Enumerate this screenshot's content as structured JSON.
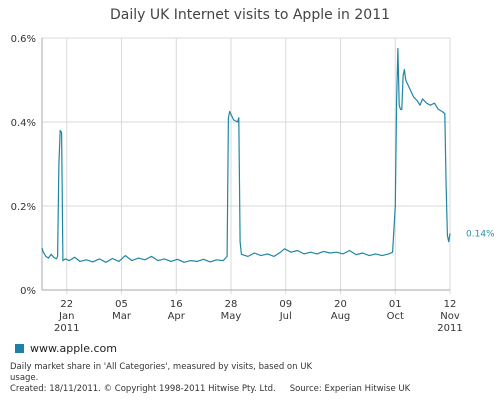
{
  "colors": {
    "series": "#1f86a3",
    "grid": "#d9d9d9",
    "axis": "#aaaaaa",
    "swatch": "#1f7fa8"
  },
  "footnote": {
    "line1": "Daily market share in 'All Categories', measured by visits, based on UK",
    "line2": "usage.",
    "created": "Created: 18/11/2011. © Copyright 1998-2011 Hitwise Pty. Ltd.",
    "source": "Source: Experian Hitwise UK"
  },
  "chart_data": {
    "type": "line",
    "title": "Daily UK Internet visits to Apple in 2011",
    "ylabel": "",
    "xlabel": "",
    "x_range": [
      "2011-01-03",
      "2011-11-12"
    ],
    "ylim": [
      0,
      0.6
    ],
    "y_ticks": [
      {
        "value": 0,
        "label": "0%"
      },
      {
        "value": 0.2,
        "label": "0.2%"
      },
      {
        "value": 0.4,
        "label": "0.4%"
      },
      {
        "value": 0.6,
        "label": "0.6%"
      }
    ],
    "x_ticks": [
      {
        "date": "2011-01-22",
        "line1": "22",
        "line2": "Jan",
        "line3": "2011"
      },
      {
        "date": "2011-03-05",
        "line1": "05",
        "line2": "Mar",
        "line3": ""
      },
      {
        "date": "2011-04-16",
        "line1": "16",
        "line2": "Apr",
        "line3": ""
      },
      {
        "date": "2011-05-28",
        "line1": "28",
        "line2": "May",
        "line3": ""
      },
      {
        "date": "2011-07-09",
        "line1": "09",
        "line2": "Jul",
        "line3": ""
      },
      {
        "date": "2011-08-20",
        "line1": "20",
        "line2": "Aug",
        "line3": ""
      },
      {
        "date": "2011-10-01",
        "line1": "01",
        "line2": "Oct",
        "line3": ""
      },
      {
        "date": "2011-11-12",
        "line1": "12",
        "line2": "Nov",
        "line3": "2011"
      }
    ],
    "grid": true,
    "legend_position": "bottom-left",
    "end_label": "0.14%",
    "series": [
      {
        "name": "www.apple.com",
        "points": [
          [
            "2011-01-03",
            0.1
          ],
          [
            "2011-01-04",
            0.09
          ],
          [
            "2011-01-06",
            0.08
          ],
          [
            "2011-01-08",
            0.076
          ],
          [
            "2011-01-10",
            0.085
          ],
          [
            "2011-01-12",
            0.078
          ],
          [
            "2011-01-14",
            0.074
          ],
          [
            "2011-01-15",
            0.08
          ],
          [
            "2011-01-16",
            0.3
          ],
          [
            "2011-01-17",
            0.38
          ],
          [
            "2011-01-18",
            0.375
          ],
          [
            "2011-01-19",
            0.07
          ],
          [
            "2011-01-21",
            0.074
          ],
          [
            "2011-01-24",
            0.07
          ],
          [
            "2011-01-28",
            0.078
          ],
          [
            "2011-02-01",
            0.068
          ],
          [
            "2011-02-06",
            0.072
          ],
          [
            "2011-02-11",
            0.067
          ],
          [
            "2011-02-16",
            0.074
          ],
          [
            "2011-02-21",
            0.066
          ],
          [
            "2011-02-26",
            0.075
          ],
          [
            "2011-03-03",
            0.068
          ],
          [
            "2011-03-08",
            0.082
          ],
          [
            "2011-03-13",
            0.07
          ],
          [
            "2011-03-18",
            0.076
          ],
          [
            "2011-03-23",
            0.072
          ],
          [
            "2011-03-28",
            0.08
          ],
          [
            "2011-04-02",
            0.07
          ],
          [
            "2011-04-07",
            0.074
          ],
          [
            "2011-04-12",
            0.068
          ],
          [
            "2011-04-17",
            0.073
          ],
          [
            "2011-04-22",
            0.066
          ],
          [
            "2011-04-27",
            0.07
          ],
          [
            "2011-05-02",
            0.068
          ],
          [
            "2011-05-07",
            0.073
          ],
          [
            "2011-05-12",
            0.067
          ],
          [
            "2011-05-17",
            0.072
          ],
          [
            "2011-05-22",
            0.07
          ],
          [
            "2011-05-25",
            0.08
          ],
          [
            "2011-05-26",
            0.41
          ],
          [
            "2011-05-27",
            0.425
          ],
          [
            "2011-05-30",
            0.405
          ],
          [
            "2011-06-02",
            0.4
          ],
          [
            "2011-06-03",
            0.41
          ],
          [
            "2011-06-04",
            0.115
          ],
          [
            "2011-06-05",
            0.085
          ],
          [
            "2011-06-10",
            0.08
          ],
          [
            "2011-06-15",
            0.088
          ],
          [
            "2011-06-20",
            0.082
          ],
          [
            "2011-06-25",
            0.086
          ],
          [
            "2011-06-30",
            0.08
          ],
          [
            "2011-07-05",
            0.09
          ],
          [
            "2011-07-08",
            0.098
          ],
          [
            "2011-07-13",
            0.09
          ],
          [
            "2011-07-18",
            0.094
          ],
          [
            "2011-07-23",
            0.086
          ],
          [
            "2011-07-28",
            0.09
          ],
          [
            "2011-08-02",
            0.086
          ],
          [
            "2011-08-07",
            0.092
          ],
          [
            "2011-08-12",
            0.088
          ],
          [
            "2011-08-17",
            0.09
          ],
          [
            "2011-08-22",
            0.086
          ],
          [
            "2011-08-27",
            0.094
          ],
          [
            "2011-09-01",
            0.084
          ],
          [
            "2011-09-06",
            0.088
          ],
          [
            "2011-09-11",
            0.082
          ],
          [
            "2011-09-16",
            0.086
          ],
          [
            "2011-09-21",
            0.082
          ],
          [
            "2011-09-26",
            0.086
          ],
          [
            "2011-09-29",
            0.09
          ],
          [
            "2011-10-01",
            0.2
          ],
          [
            "2011-10-02",
            0.45
          ],
          [
            "2011-10-03",
            0.575
          ],
          [
            "2011-10-04",
            0.44
          ],
          [
            "2011-10-05",
            0.43
          ],
          [
            "2011-10-06",
            0.43
          ],
          [
            "2011-10-07",
            0.51
          ],
          [
            "2011-10-08",
            0.525
          ],
          [
            "2011-10-09",
            0.5
          ],
          [
            "2011-10-12",
            0.48
          ],
          [
            "2011-10-15",
            0.46
          ],
          [
            "2011-10-18",
            0.45
          ],
          [
            "2011-10-20",
            0.44
          ],
          [
            "2011-10-22",
            0.455
          ],
          [
            "2011-10-25",
            0.445
          ],
          [
            "2011-10-28",
            0.44
          ],
          [
            "2011-10-31",
            0.445
          ],
          [
            "2011-11-03",
            0.43
          ],
          [
            "2011-11-06",
            0.425
          ],
          [
            "2011-11-08",
            0.42
          ],
          [
            "2011-11-09",
            0.25
          ],
          [
            "2011-11-10",
            0.13
          ],
          [
            "2011-11-11",
            0.115
          ],
          [
            "2011-11-12",
            0.135
          ]
        ]
      }
    ]
  }
}
